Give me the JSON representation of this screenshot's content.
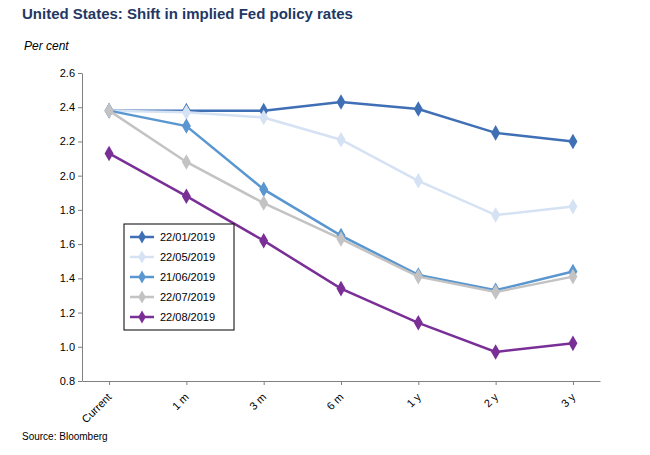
{
  "chart_data": {
    "type": "line",
    "title": "United States: Shift in implied Fed policy rates",
    "subtitle": "Per cent",
    "source": "Source: Bloomberg",
    "categories": [
      "Current",
      "1 m",
      "3 m",
      "6 m",
      "1 y",
      "2 y",
      "3 y"
    ],
    "series": [
      {
        "name": "22/01/2019",
        "color": "#3f6fb5",
        "values": [
          2.38,
          2.38,
          2.38,
          2.43,
          2.39,
          2.25,
          2.2
        ]
      },
      {
        "name": "22/05/2019",
        "color": "#d5e2f3",
        "values": [
          2.38,
          2.37,
          2.34,
          2.21,
          1.97,
          1.77,
          1.82
        ]
      },
      {
        "name": "21/06/2019",
        "color": "#5a96cf",
        "values": [
          2.38,
          2.29,
          1.92,
          1.65,
          1.42,
          1.33,
          1.44
        ]
      },
      {
        "name": "22/07/2019",
        "color": "#c3c3c3",
        "values": [
          2.38,
          2.08,
          1.84,
          1.63,
          1.41,
          1.32,
          1.41
        ]
      },
      {
        "name": "22/08/2019",
        "color": "#7a2f97",
        "values": [
          2.13,
          1.88,
          1.62,
          1.34,
          1.14,
          0.97,
          1.02
        ]
      }
    ],
    "ylim": [
      0.8,
      2.6
    ],
    "yticks": [
      0.8,
      {
        "value": 1,
        "label": "1.0"
      },
      1.2,
      1.4,
      1.6,
      1.8,
      {
        "value": 2,
        "label": "2.0"
      },
      2.2,
      2.4,
      2.6
    ],
    "grid": false,
    "legend": "left",
    "marker": "diamond",
    "line_style": "solid"
  }
}
